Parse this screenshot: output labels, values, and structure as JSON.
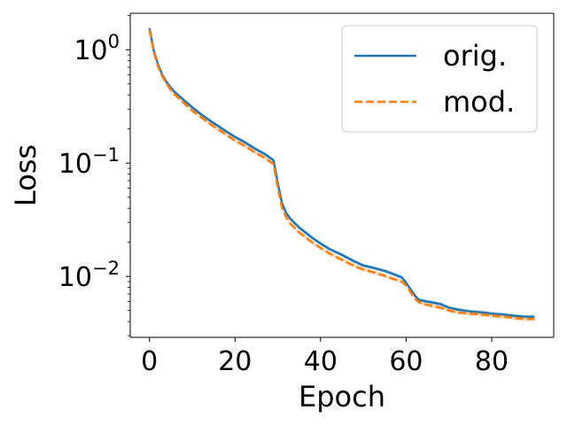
{
  "chart_data": {
    "type": "line",
    "title": "",
    "xlabel": "Epoch",
    "ylabel": "Loss",
    "xlim": [
      -4.5,
      94.5
    ],
    "ylim": [
      0.0029,
      2.1
    ],
    "yscale": "log",
    "xticks": [
      0,
      20,
      40,
      60,
      80
    ],
    "yticks": [
      {
        "value": 1,
        "base": "10",
        "exp": "0"
      },
      {
        "value": 0.1,
        "base": "10",
        "exp": "−1"
      },
      {
        "value": 0.01,
        "base": "10",
        "exp": "−2"
      }
    ],
    "grid": false,
    "legend": "top-right",
    "series": [
      {
        "name": "orig.",
        "color": "#1f77b4",
        "style": "solid",
        "x": [
          0,
          1,
          2,
          3,
          4,
          5,
          6,
          8,
          10,
          12,
          15,
          18,
          20,
          22,
          25,
          27,
          29,
          30,
          31,
          32,
          33,
          35,
          38,
          40,
          42,
          45,
          48,
          50,
          52,
          55,
          57,
          59,
          60,
          62,
          63,
          65,
          68,
          70,
          72,
          75,
          78,
          80,
          83,
          85,
          88,
          90
        ],
        "y": [
          1.55,
          0.98,
          0.74,
          0.6,
          0.52,
          0.46,
          0.42,
          0.36,
          0.31,
          0.27,
          0.225,
          0.19,
          0.17,
          0.155,
          0.132,
          0.12,
          0.106,
          0.066,
          0.044,
          0.036,
          0.032,
          0.027,
          0.022,
          0.0195,
          0.0175,
          0.0155,
          0.0135,
          0.0125,
          0.012,
          0.0112,
          0.0105,
          0.0098,
          0.0088,
          0.0068,
          0.0062,
          0.006,
          0.0057,
          0.0053,
          0.0051,
          0.0049,
          0.0048,
          0.0047,
          0.0046,
          0.0045,
          0.0044,
          0.0044
        ]
      },
      {
        "name": "mod.",
        "color": "#ff7f0e",
        "style": "dashed",
        "x": [
          0,
          1,
          2,
          3,
          4,
          5,
          6,
          8,
          10,
          12,
          15,
          18,
          20,
          22,
          25,
          27,
          29,
          30,
          31,
          32,
          33,
          35,
          38,
          40,
          42,
          45,
          48,
          50,
          52,
          55,
          57,
          59,
          60,
          62,
          63,
          65,
          68,
          70,
          72,
          75,
          78,
          80,
          83,
          85,
          88,
          90
        ],
        "y": [
          1.5,
          0.95,
          0.71,
          0.58,
          0.5,
          0.44,
          0.4,
          0.34,
          0.29,
          0.255,
          0.21,
          0.178,
          0.158,
          0.144,
          0.122,
          0.111,
          0.098,
          0.06,
          0.04,
          0.033,
          0.029,
          0.0245,
          0.02,
          0.0178,
          0.016,
          0.014,
          0.0123,
          0.0115,
          0.011,
          0.0101,
          0.0095,
          0.009,
          0.0083,
          0.0064,
          0.0059,
          0.0056,
          0.0053,
          0.005,
          0.0048,
          0.0047,
          0.0046,
          0.0045,
          0.0044,
          0.0043,
          0.0042,
          0.0042
        ]
      }
    ]
  }
}
